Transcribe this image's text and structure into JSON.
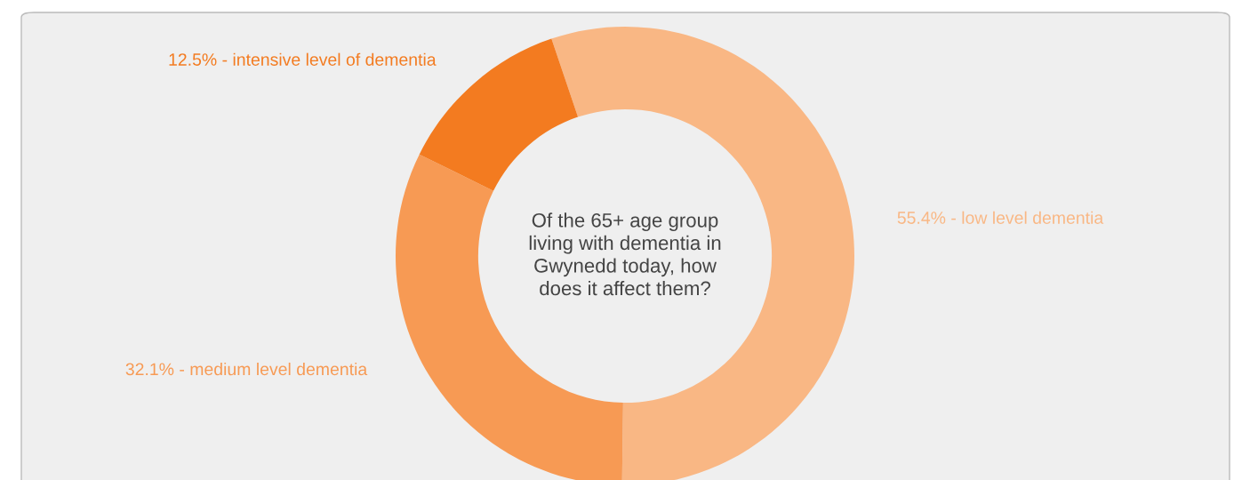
{
  "chart_data": {
    "type": "donut",
    "title": "Of the 65+ age group\nliving with dementia in\nGwynedd today, how\ndoes it affect them?",
    "categories": [
      "55.4% - low level dementia",
      "32.1% - medium level dementia",
      "12.5% - intensive level of dementia"
    ],
    "values": [
      55.4,
      32.1,
      12.5
    ],
    "colors": [
      "#f9b784",
      "#f79a54",
      "#f37b20"
    ],
    "legend": false
  }
}
